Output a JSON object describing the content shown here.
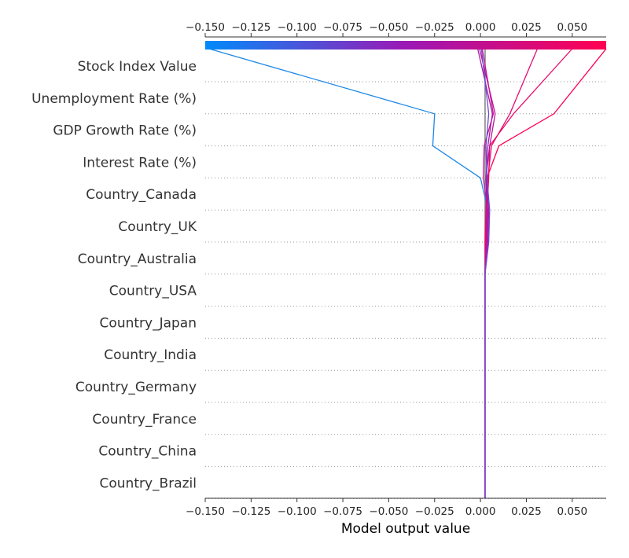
{
  "chart_data": {
    "type": "decision_plot",
    "xlabel": "Model output value",
    "xlim": [
      -0.15,
      0.0685
    ],
    "x_ticks": [
      {
        "value": -0.15,
        "label": "−0.150"
      },
      {
        "value": -0.125,
        "label": "−0.125"
      },
      {
        "value": -0.1,
        "label": "−0.100"
      },
      {
        "value": -0.075,
        "label": "−0.075"
      },
      {
        "value": -0.05,
        "label": "−0.050"
      },
      {
        "value": -0.025,
        "label": "−0.025"
      },
      {
        "value": 0.0,
        "label": "0.000"
      },
      {
        "value": 0.025,
        "label": "0.025"
      },
      {
        "value": 0.05,
        "label": "0.050"
      }
    ],
    "base_value": 0.0025,
    "features": [
      "Stock Index Value",
      "Unemployment Rate (%)",
      "GDP Growth Rate (%)",
      "Interest Rate (%)",
      "Country_Canada",
      "Country_UK",
      "Country_Australia",
      "Country_USA",
      "Country_Japan",
      "Country_India",
      "Country_Germany",
      "Country_France",
      "Country_China",
      "Country_Brazil"
    ],
    "colorbar": {
      "low_color": "#008bfb",
      "mid_color": "#9b19b5",
      "high_color": "#ff0052"
    },
    "series": [
      {
        "color": "#1e88e5",
        "values": [
          0.0025,
          0.0025,
          0.0025,
          0.0025,
          0.0025,
          0.0025,
          0.0025,
          0.0025,
          0.0025,
          0.0035,
          0.004,
          0.0,
          -0.026,
          -0.025,
          -0.148
        ]
      },
      {
        "color": "#ff0052",
        "values": [
          0.0025,
          0.0025,
          0.0025,
          0.0025,
          0.0025,
          0.0025,
          0.0025,
          0.0025,
          0.0025,
          0.0025,
          0.003,
          0.0035,
          0.01,
          0.04,
          0.0685
        ]
      },
      {
        "color": "#ea0a6d",
        "values": [
          0.0025,
          0.0025,
          0.0025,
          0.0025,
          0.0025,
          0.0025,
          0.0025,
          0.0025,
          0.0025,
          0.003,
          0.0035,
          0.0045,
          0.005,
          0.018,
          0.05
        ]
      },
      {
        "color": "#e60c72",
        "values": [
          0.0025,
          0.0025,
          0.0025,
          0.0025,
          0.0025,
          0.0025,
          0.0025,
          0.0025,
          0.0025,
          0.003,
          0.003,
          0.004,
          0.006,
          0.016,
          0.031
        ]
      },
      {
        "color": "#b51497",
        "values": [
          0.0025,
          0.0025,
          0.0025,
          0.0025,
          0.0025,
          0.0025,
          0.0025,
          0.0025,
          0.0025,
          0.004,
          0.0045,
          0.003,
          0.005,
          0.008,
          -0.0005
        ]
      },
      {
        "color": "#c8129b",
        "values": [
          0.0025,
          0.0025,
          0.0025,
          0.0025,
          0.0025,
          0.0025,
          0.0025,
          0.0025,
          0.0025,
          0.0035,
          0.004,
          0.0015,
          0.002,
          0.007,
          0.001
        ]
      },
      {
        "color": "#a61aa6",
        "values": [
          0.0025,
          0.0025,
          0.0025,
          0.0025,
          0.0025,
          0.0025,
          0.0025,
          0.0025,
          0.0025,
          0.003,
          0.0035,
          0.003,
          0.004,
          0.0065,
          -0.0015
        ]
      },
      {
        "color": "#6a4ad6",
        "values": [
          0.0025,
          0.0025,
          0.0025,
          0.0025,
          0.0025,
          0.0025,
          0.0025,
          0.0025,
          0.0025,
          0.0045,
          0.005,
          0.0035,
          0.003,
          0.0045,
          0.0005
        ]
      }
    ]
  }
}
